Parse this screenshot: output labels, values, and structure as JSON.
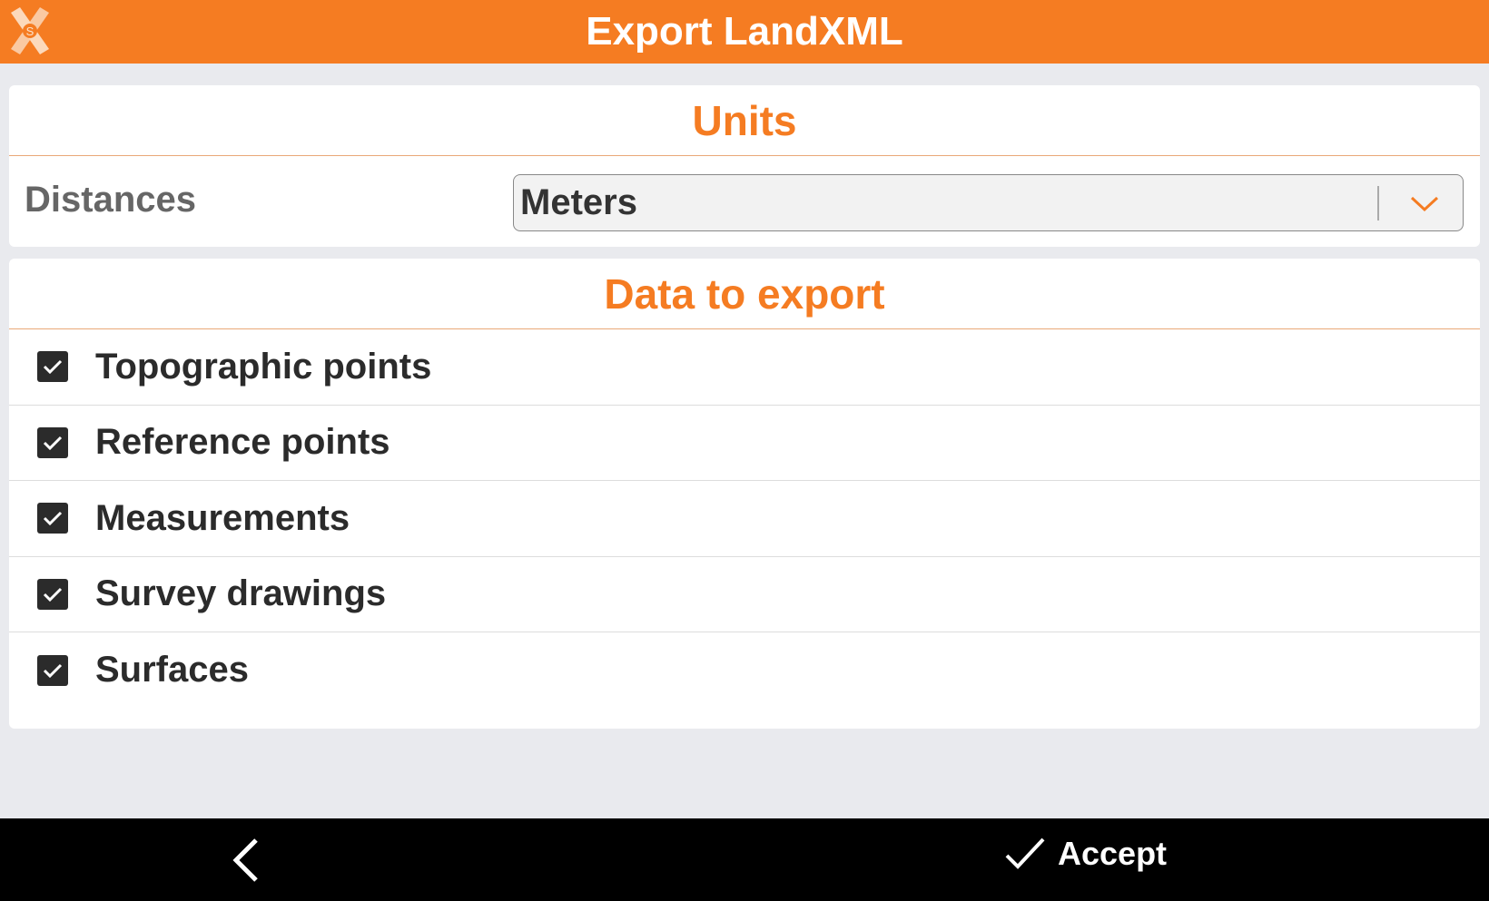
{
  "header": {
    "title": "Export LandXML",
    "logo_icon": "app-logo-x"
  },
  "units": {
    "title": "Units",
    "distances_label": "Distances",
    "distances_value": "Meters"
  },
  "data_export": {
    "title": "Data to export",
    "items": [
      {
        "label": "Topographic points",
        "checked": true
      },
      {
        "label": "Reference points",
        "checked": true
      },
      {
        "label": "Measurements",
        "checked": true
      },
      {
        "label": "Survey drawings",
        "checked": true
      },
      {
        "label": "Surfaces",
        "checked": true
      }
    ]
  },
  "footer": {
    "accept_label": "Accept"
  },
  "colors": {
    "accent": "#f57c22",
    "background": "#e9eaee",
    "footer": "#000000"
  }
}
